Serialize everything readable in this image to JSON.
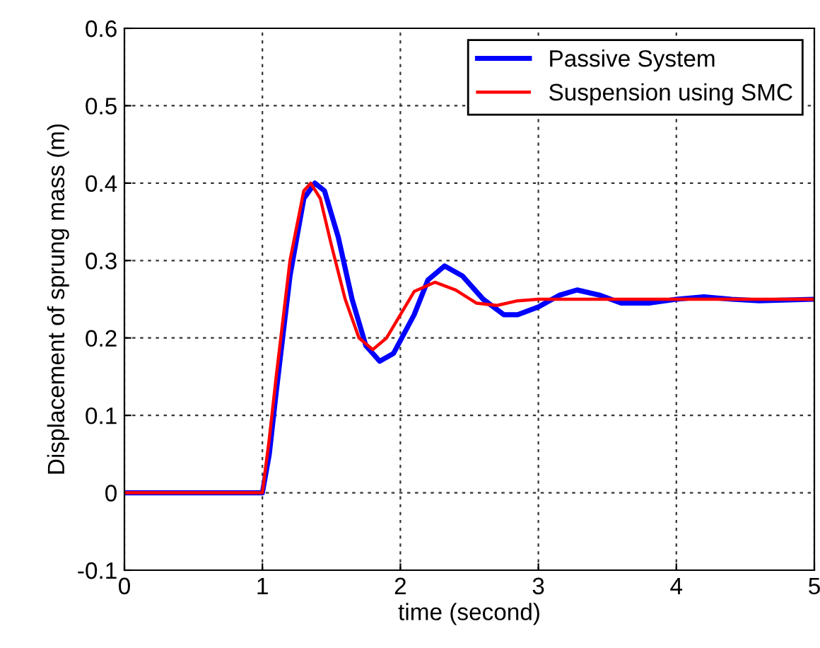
{
  "chart_data": {
    "type": "line",
    "xlabel": "time (second)",
    "ylabel": "Displacement of sprung mass (m)",
    "xlim": [
      0,
      5
    ],
    "ylim": [
      -0.1,
      0.6
    ],
    "xticks": [
      0,
      1,
      2,
      3,
      4,
      5
    ],
    "yticks": [
      -0.1,
      0,
      0.1,
      0.2,
      0.3,
      0.4,
      0.5,
      0.6
    ],
    "grid": true,
    "legend": "top right",
    "line_style": "solid",
    "marker": "none",
    "series": [
      {
        "name": "Passive System",
        "color": "#0000ff",
        "x": [
          0,
          1.0,
          1.05,
          1.1,
          1.2,
          1.3,
          1.38,
          1.45,
          1.55,
          1.65,
          1.75,
          1.85,
          1.95,
          2.1,
          2.2,
          2.32,
          2.45,
          2.6,
          2.75,
          2.85,
          3.0,
          3.15,
          3.28,
          3.45,
          3.6,
          3.8,
          4.0,
          4.2,
          4.4,
          4.6,
          5
        ],
        "values": [
          0,
          0,
          0.05,
          0.13,
          0.28,
          0.38,
          0.4,
          0.39,
          0.33,
          0.25,
          0.19,
          0.17,
          0.18,
          0.23,
          0.275,
          0.293,
          0.28,
          0.25,
          0.23,
          0.23,
          0.24,
          0.255,
          0.262,
          0.255,
          0.245,
          0.245,
          0.25,
          0.253,
          0.25,
          0.248,
          0.25
        ]
      },
      {
        "name": "Suspension using SMC",
        "color": "#ff0000",
        "x": [
          0,
          1.0,
          1.05,
          1.1,
          1.2,
          1.3,
          1.35,
          1.42,
          1.5,
          1.6,
          1.7,
          1.8,
          1.9,
          2.0,
          2.1,
          2.25,
          2.4,
          2.55,
          2.7,
          2.85,
          3.0,
          3.5,
          4.0,
          5
        ],
        "values": [
          0,
          0,
          0.07,
          0.15,
          0.3,
          0.39,
          0.4,
          0.38,
          0.32,
          0.25,
          0.2,
          0.185,
          0.2,
          0.23,
          0.26,
          0.272,
          0.262,
          0.245,
          0.242,
          0.248,
          0.25,
          0.25,
          0.25,
          0.25
        ]
      }
    ]
  }
}
